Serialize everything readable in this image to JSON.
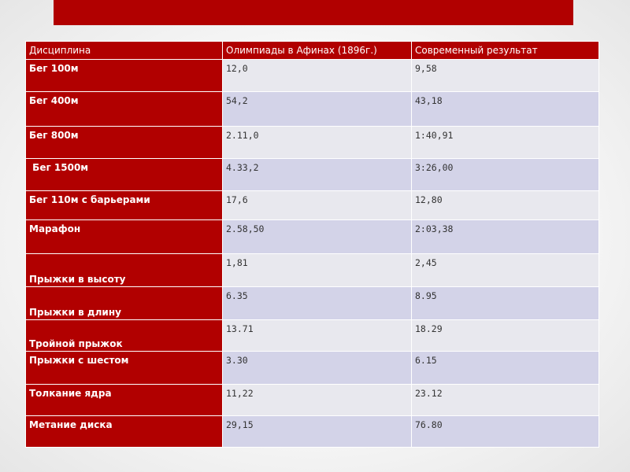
{
  "headers": [
    "Дисциплина",
    "Олимпиады в Афинах (1896г.)",
    "Современный результат"
  ],
  "rows": [
    {
      "discipline": "Бег 100м",
      "athens_1896": "12,0",
      "modern": "9,58"
    },
    {
      "discipline": "Бег 400м",
      "athens_1896": "54,2",
      "modern": "43,18"
    },
    {
      "discipline": "Бег 800м",
      "athens_1896": "2.11,0",
      "modern": "1:40,91"
    },
    {
      "discipline": " Бег 1500м",
      "athens_1896": "4.33,2",
      "modern": "3:26,00"
    },
    {
      "discipline": "Бег 110м с барьерами",
      "athens_1896": "17,6",
      "modern": "12,80"
    },
    {
      "discipline": "Марафон",
      "athens_1896": "2.58,50",
      "modern": "2:03,38"
    },
    {
      "discipline": "Прыжки в высоту",
      "athens_1896": "1,81",
      "modern": "2,45"
    },
    {
      "discipline": "Прыжки в длину",
      "athens_1896": "6.35",
      "modern": "8.95"
    },
    {
      "discipline": "Тройной прыжок",
      "athens_1896": "13.71",
      "modern": "18.29"
    },
    {
      "discipline": "Прыжки с шестом",
      "athens_1896": "3.30",
      "modern": "6.15"
    },
    {
      "discipline": "Толкание ядра",
      "athens_1896": "11,22",
      "modern": "23.12"
    },
    {
      "discipline": "Метание диска",
      "athens_1896": "29,15",
      "modern": "76.80"
    }
  ],
  "colors": {
    "accent_red": "#b10000",
    "row_light": "#e8e8ee",
    "row_dark": "#d3d3e8"
  }
}
